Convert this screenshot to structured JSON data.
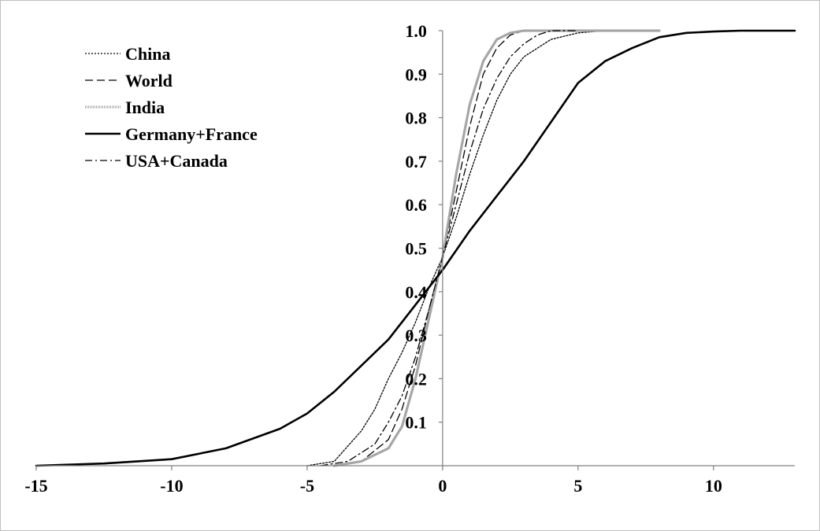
{
  "chart_data": {
    "type": "line",
    "title": "",
    "xlabel": "",
    "ylabel": "",
    "xlim": [
      -15,
      13
    ],
    "ylim": [
      0,
      1
    ],
    "x_ticks": [
      -15,
      -10,
      -5,
      0,
      5,
      10
    ],
    "x_tick_labels": [
      "-15",
      "-10",
      "-5",
      "0",
      "5",
      "10"
    ],
    "y_ticks": [
      0.1,
      0.2,
      0.3,
      0.4,
      0.5,
      0.6,
      0.7,
      0.8,
      0.9,
      1.0
    ],
    "y_tick_labels": [
      "0.1",
      "0.2",
      "0.3",
      "0.4",
      "0.5",
      "0.6",
      "0.7",
      "0.8",
      "0.9",
      "1.0"
    ],
    "grid": false,
    "legend_position": "top-left",
    "series": [
      {
        "name": "China",
        "style": "dotted",
        "color": "#000000",
        "x": [
          -5,
          -4,
          -3,
          -2.5,
          -2,
          -1.5,
          -1,
          -0.5,
          0,
          0.5,
          1,
          1.5,
          2,
          2.5,
          3,
          4,
          5,
          6,
          8
        ],
        "y": [
          0,
          0.01,
          0.08,
          0.13,
          0.2,
          0.26,
          0.33,
          0.41,
          0.48,
          0.57,
          0.67,
          0.76,
          0.84,
          0.9,
          0.94,
          0.98,
          0.995,
          1.0,
          1.0
        ]
      },
      {
        "name": "World",
        "style": "dashed",
        "color": "#000000",
        "x": [
          -4,
          -3,
          -2,
          -1.5,
          -1,
          -0.5,
          0,
          0.5,
          1,
          1.5,
          2,
          2.5,
          3,
          4,
          5
        ],
        "y": [
          0,
          0.01,
          0.06,
          0.13,
          0.23,
          0.36,
          0.48,
          0.63,
          0.78,
          0.9,
          0.96,
          0.99,
          1.0,
          1.0,
          1.0
        ]
      },
      {
        "name": "India",
        "style": "gray",
        "color": "#a6a6a6",
        "x": [
          -4,
          -3,
          -2,
          -1.5,
          -1,
          -0.5,
          0,
          0.5,
          1,
          1.5,
          2,
          2.5,
          3,
          5,
          8
        ],
        "y": [
          0,
          0.01,
          0.04,
          0.09,
          0.2,
          0.34,
          0.48,
          0.67,
          0.83,
          0.93,
          0.98,
          0.995,
          1.0,
          1.0,
          1.0
        ]
      },
      {
        "name": "Germany+France",
        "style": "solid",
        "color": "#000000",
        "x": [
          -15,
          -12.5,
          -10,
          -8,
          -6,
          -5,
          -4,
          -3,
          -2,
          -1,
          0,
          1,
          2,
          3,
          4,
          5,
          6,
          7,
          8,
          9,
          10,
          11,
          13
        ],
        "y": [
          0,
          0.005,
          0.015,
          0.04,
          0.085,
          0.12,
          0.17,
          0.23,
          0.29,
          0.37,
          0.45,
          0.54,
          0.62,
          0.7,
          0.79,
          0.88,
          0.93,
          0.96,
          0.985,
          0.995,
          0.998,
          1.0,
          1.0
        ]
      },
      {
        "name": "USA+Canada",
        "style": "dash-dot",
        "color": "#000000",
        "x": [
          -4.5,
          -3.5,
          -2.5,
          -2,
          -1.5,
          -1,
          -0.5,
          0,
          0.5,
          1,
          1.5,
          2,
          2.5,
          3,
          3.5,
          4,
          5
        ],
        "y": [
          0,
          0.01,
          0.05,
          0.1,
          0.16,
          0.25,
          0.36,
          0.48,
          0.6,
          0.72,
          0.82,
          0.89,
          0.94,
          0.97,
          0.99,
          1.0,
          1.0
        ]
      }
    ]
  }
}
